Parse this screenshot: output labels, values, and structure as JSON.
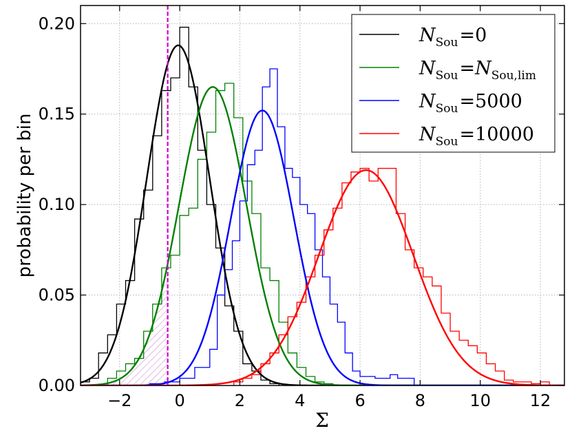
{
  "chart_data": {
    "type": "histogram",
    "xlabel": "Σ",
    "ylabel": "probability per bin",
    "xlim": [
      -3.3,
      12.8
    ],
    "ylim": [
      0,
      0.21
    ],
    "xticks": [
      -2,
      0,
      2,
      4,
      6,
      8,
      10,
      12
    ],
    "xtick_labels": [
      "−2",
      "0",
      "2",
      "4",
      "6",
      "8",
      "10",
      "12"
    ],
    "yticks": [
      0.0,
      0.05,
      0.1,
      0.15,
      0.2
    ],
    "ytick_labels": [
      "0.00",
      "0.05",
      "0.10",
      "0.15",
      "0.20"
    ],
    "grid": true,
    "legend_position": "top-right",
    "threshold_line": {
      "x": -0.4,
      "color": "#cc00cc",
      "style": "dashed"
    },
    "shaded_region": {
      "x_from": -3.3,
      "x_to": -0.4,
      "curve_series": "N_Sou=N_Sou,lim",
      "color": "#cc77cc",
      "pattern": "hatched"
    },
    "series": [
      {
        "legend_sub": "Sou",
        "legend_op": "=",
        "legend_value": "0",
        "legend_value_sub": "",
        "color": "#000000",
        "gauss": {
          "mean": -0.05,
          "sigma": 1.05,
          "amp": 0.188
        },
        "hist": {
          "edges": [
            -3.3,
            -3.0,
            -2.7,
            -2.4,
            -2.1,
            -1.8,
            -1.5,
            -1.2,
            -0.9,
            -0.6,
            -0.3,
            0.0,
            0.3,
            0.6,
            0.9,
            1.2,
            1.5,
            1.8,
            2.1,
            2.4,
            2.7,
            3.0,
            3.3
          ],
          "values": [
            0.002,
            0.004,
            0.018,
            0.028,
            0.045,
            0.058,
            0.092,
            0.108,
            0.138,
            0.163,
            0.17,
            0.198,
            0.165,
            0.13,
            0.1,
            0.076,
            0.044,
            0.03,
            0.012,
            0.008,
            0.003,
            0.001
          ]
        }
      },
      {
        "legend_sub": "Sou",
        "legend_op": "=",
        "legend_value": "N",
        "legend_value_sub": "Sou,lim",
        "color": "#008000",
        "gauss": {
          "mean": 1.1,
          "sigma": 1.12,
          "amp": 0.165
        },
        "hist": {
          "edges": [
            -2.4,
            -2.1,
            -1.8,
            -1.5,
            -1.2,
            -0.9,
            -0.6,
            -0.3,
            0.0,
            0.3,
            0.6,
            0.9,
            1.2,
            1.5,
            1.8,
            2.1,
            2.4,
            2.7,
            3.0,
            3.3,
            3.6,
            3.9,
            4.2,
            4.5,
            4.8,
            5.1
          ],
          "values": [
            0.004,
            0.008,
            0.012,
            0.015,
            0.03,
            0.045,
            0.065,
            0.072,
            0.094,
            0.098,
            0.125,
            0.14,
            0.163,
            0.167,
            0.148,
            0.113,
            0.095,
            0.065,
            0.058,
            0.035,
            0.018,
            0.01,
            0.005,
            0.002,
            0.001
          ]
        }
      },
      {
        "legend_sub": "Sou",
        "legend_op": "=",
        "legend_value": "5000",
        "legend_value_sub": "",
        "color": "#0000ff",
        "gauss": {
          "mean": 2.75,
          "sigma": 1.05,
          "amp": 0.152
        },
        "hist": {
          "edges": [
            -1.0,
            -0.5,
            0.0,
            0.5,
            1.0,
            1.25,
            1.5,
            1.75,
            2.0,
            2.25,
            2.5,
            2.75,
            3.0,
            3.25,
            3.5,
            3.75,
            4.0,
            4.25,
            4.5,
            4.75,
            5.0,
            5.25,
            5.5,
            5.75,
            6.0,
            6.25,
            6.5,
            6.75,
            7.0,
            7.25,
            7.5,
            7.8
          ],
          "values": [
            0.001,
            0.002,
            0.004,
            0.01,
            0.02,
            0.05,
            0.064,
            0.08,
            0.102,
            0.122,
            0.13,
            0.165,
            0.175,
            0.143,
            0.12,
            0.115,
            0.1,
            0.095,
            0.075,
            0.06,
            0.045,
            0.035,
            0.018,
            0.008,
            0.005,
            0.005,
            0.004,
            0.004,
            0.006,
            0.004,
            0.004
          ]
        }
      },
      {
        "legend_sub": "Sou",
        "legend_op": "=",
        "legend_value": "10000",
        "legend_value_sub": "",
        "color": "#ff0000",
        "gauss": {
          "mean": 6.2,
          "sigma": 1.57,
          "amp": 0.119
        },
        "hist": {
          "edges": [
            1.8,
            2.1,
            2.4,
            2.7,
            3.0,
            3.3,
            3.6,
            3.9,
            4.2,
            4.5,
            4.8,
            5.1,
            5.4,
            5.7,
            6.0,
            6.3,
            6.6,
            6.9,
            7.2,
            7.5,
            7.8,
            8.1,
            8.4,
            8.7,
            9.0,
            9.3,
            9.6,
            9.9,
            10.2,
            10.5,
            10.8,
            11.1,
            11.4,
            11.7,
            12.0,
            12.3
          ],
          "values": [
            0.002,
            0.004,
            0.006,
            0.012,
            0.018,
            0.028,
            0.038,
            0.046,
            0.06,
            0.072,
            0.086,
            0.098,
            0.112,
            0.118,
            0.12,
            0.113,
            0.12,
            0.12,
            0.095,
            0.075,
            0.065,
            0.06,
            0.055,
            0.04,
            0.03,
            0.025,
            0.022,
            0.018,
            0.012,
            0.008,
            0.003,
            0.002,
            0.002,
            0.001,
            0.002
          ]
        }
      }
    ]
  },
  "legend": {
    "entries": [
      {
        "var": "N",
        "sub": "Sou",
        "op": "=",
        "val": "0",
        "val_sub": ""
      },
      {
        "var": "N",
        "sub": "Sou",
        "op": "=",
        "val": "N",
        "val_sub": "Sou,lim"
      },
      {
        "var": "N",
        "sub": "Sou",
        "op": "=",
        "val": "5000",
        "val_sub": ""
      },
      {
        "var": "N",
        "sub": "Sou",
        "op": "=",
        "val": "10000",
        "val_sub": ""
      }
    ]
  }
}
